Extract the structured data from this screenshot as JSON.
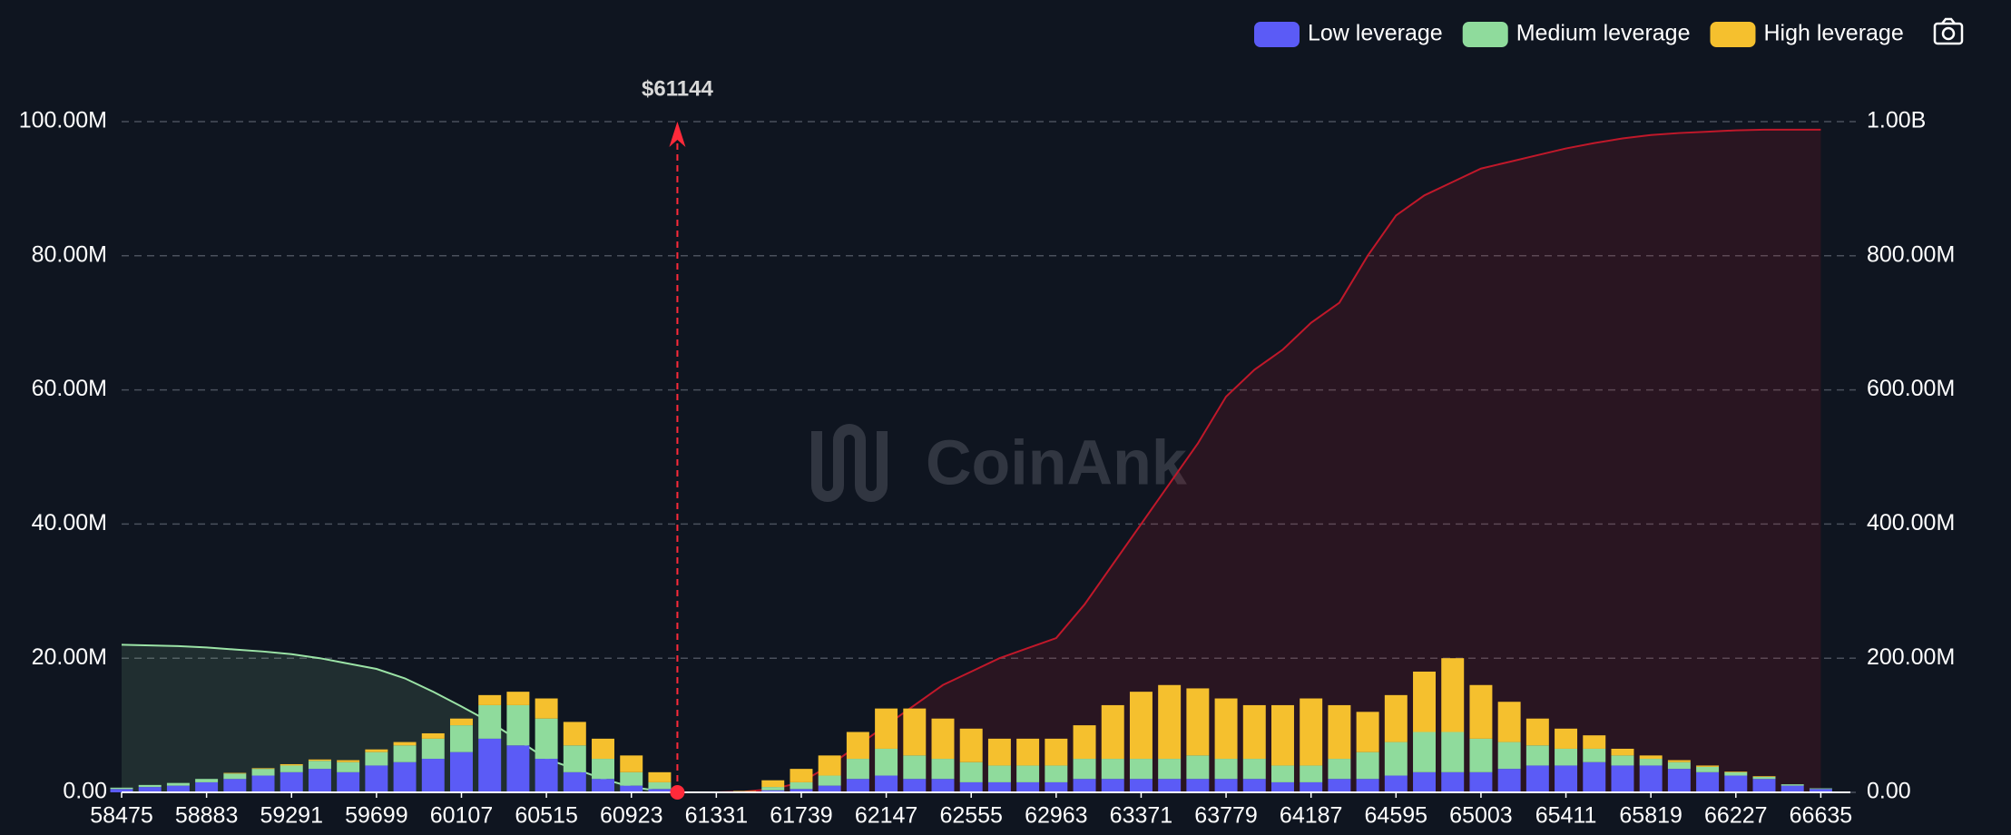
{
  "chart_data": {
    "type": "bar",
    "watermark": "CoinAnk",
    "x": [
      58475,
      58611,
      58747,
      58883,
      59019,
      59155,
      59291,
      59427,
      59563,
      59699,
      59835,
      59971,
      60107,
      60243,
      60379,
      60515,
      60651,
      60787,
      60923,
      61059,
      61195,
      61331,
      61467,
      61603,
      61739,
      61875,
      62011,
      62147,
      62283,
      62419,
      62555,
      62691,
      62827,
      62963,
      63099,
      63235,
      63371,
      63507,
      63643,
      63779,
      63915,
      64051,
      64187,
      64323,
      64459,
      64595,
      64731,
      64867,
      65003,
      65139,
      65275,
      65411,
      65547,
      65683,
      65819,
      65955,
      66091,
      66227,
      66363,
      66499,
      66635
    ],
    "series": [
      {
        "name": "Low leverage",
        "color": "#5b5bf6",
        "values": [
          0.5,
          0.8,
          1,
          1.5,
          2,
          2.5,
          3,
          3.5,
          3,
          4,
          4.5,
          5,
          6,
          8,
          7,
          5,
          3,
          2,
          1,
          0.5,
          0,
          0,
          0,
          0.3,
          0.5,
          1,
          2,
          2.5,
          2,
          2,
          1.5,
          1.5,
          1.5,
          1.5,
          2,
          2,
          2,
          2,
          2,
          2,
          2,
          1.5,
          1.5,
          2,
          2,
          2.5,
          3,
          3,
          3,
          3.5,
          4,
          4,
          4.5,
          4,
          4,
          3.5,
          3,
          2.5,
          2,
          1,
          0.5
        ]
      },
      {
        "name": "Medium leverage",
        "color": "#8fdb9c",
        "values": [
          0.2,
          0.3,
          0.4,
          0.5,
          0.8,
          1,
          1,
          1.2,
          1.5,
          2,
          2.5,
          3,
          4,
          5,
          6,
          6,
          4,
          3,
          2,
          1,
          0,
          0,
          0,
          0.5,
          1,
          1.5,
          3,
          4,
          3.5,
          3,
          3,
          2.5,
          2.5,
          2.5,
          3,
          3,
          3,
          3,
          3.5,
          3,
          3,
          2.5,
          2.5,
          3,
          4,
          5,
          6,
          6,
          5,
          4,
          3,
          2.5,
          2,
          1.5,
          1,
          1,
          0.8,
          0.5,
          0.3,
          0.2,
          0.1
        ]
      },
      {
        "name": "High leverage",
        "color": "#f5c02e",
        "values": [
          0,
          0,
          0,
          0,
          0.1,
          0.1,
          0.2,
          0.2,
          0.3,
          0.4,
          0.5,
          0.8,
          1,
          1.5,
          2,
          3,
          3.5,
          3,
          2.5,
          1.5,
          0,
          0,
          0.2,
          1,
          2,
          3,
          4,
          6,
          7,
          6,
          5,
          4,
          4,
          4,
          5,
          8,
          10,
          11,
          10,
          9,
          8,
          9,
          10,
          8,
          6,
          7,
          9,
          11,
          8,
          6,
          4,
          3,
          2,
          1,
          0.5,
          0.3,
          0.2,
          0.1,
          0.1,
          0,
          0
        ]
      }
    ],
    "cumulative_long": {
      "color": "#9be3a6",
      "axis": "y2",
      "values": [
        220,
        219,
        218,
        216,
        213,
        210,
        206,
        200,
        192,
        184,
        170,
        150,
        128,
        105,
        78,
        50,
        35,
        20,
        8,
        2,
        null,
        null,
        null,
        null,
        null,
        null,
        null,
        null,
        null,
        null,
        null,
        null,
        null,
        null,
        null,
        null,
        null,
        null,
        null,
        null,
        null,
        null,
        null,
        null,
        null,
        null,
        null,
        null,
        null,
        null,
        null,
        null,
        null,
        null,
        null,
        null,
        null,
        null,
        null,
        null,
        null
      ]
    },
    "cumulative_short": {
      "color": "#c0182a",
      "axis": "y2",
      "values": [
        null,
        null,
        null,
        null,
        null,
        null,
        null,
        null,
        null,
        null,
        null,
        null,
        null,
        null,
        null,
        null,
        null,
        null,
        null,
        null,
        0,
        0,
        1,
        5,
        15,
        40,
        70,
        100,
        130,
        160,
        180,
        200,
        215,
        230,
        280,
        340,
        400,
        460,
        520,
        590,
        630,
        660,
        700,
        730,
        800,
        860,
        890,
        910,
        930,
        940,
        950,
        960,
        968,
        975,
        980,
        983,
        985,
        987,
        988,
        988,
        988
      ]
    },
    "current_price": {
      "x": 61144,
      "label": "$61144",
      "color": "#ff2a3a"
    },
    "xlim": [
      58475,
      66777
    ],
    "xticks": [
      58475,
      58883,
      59291,
      59699,
      60107,
      60515,
      60923,
      61331,
      61739,
      62147,
      62555,
      62963,
      63371,
      63779,
      64187,
      64595,
      65003,
      65411,
      65819,
      66227,
      66635
    ],
    "ylim": [
      0,
      100
    ],
    "yticks": [
      {
        "value": 0,
        "label": "0.00"
      },
      {
        "value": 20,
        "label": "20.00M"
      },
      {
        "value": 40,
        "label": "40.00M"
      },
      {
        "value": 60,
        "label": "60.00M"
      },
      {
        "value": 80,
        "label": "80.00M"
      },
      {
        "value": 100,
        "label": "100.00M"
      }
    ],
    "y2lim": [
      0,
      1000
    ],
    "y2ticks": [
      {
        "value": 0,
        "label": "0.00"
      },
      {
        "value": 200,
        "label": "200.00M"
      },
      {
        "value": 400,
        "label": "400.00M"
      },
      {
        "value": 600,
        "label": "600.00M"
      },
      {
        "value": 800,
        "label": "800.00M"
      },
      {
        "value": 1000,
        "label": "1.00B"
      }
    ],
    "grid": true,
    "legend": "top-right"
  }
}
